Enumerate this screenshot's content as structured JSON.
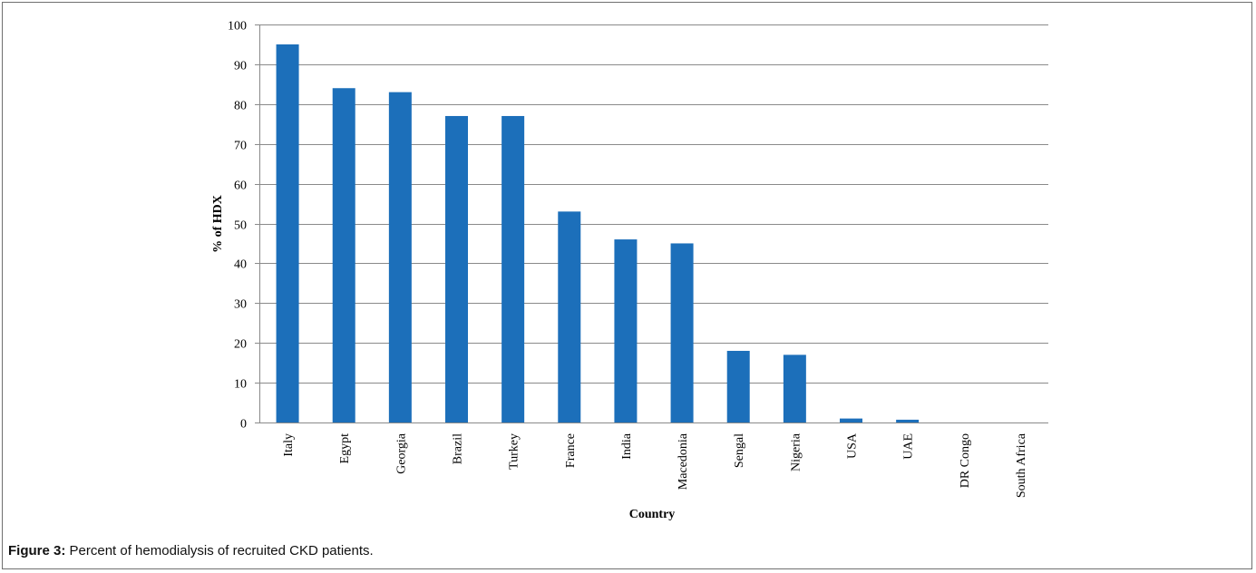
{
  "chart_data": {
    "type": "bar",
    "xlabel": "Country",
    "ylabel": "% of HDX",
    "ylim": [
      0,
      100
    ],
    "yticks": [
      0,
      10,
      20,
      30,
      40,
      50,
      60,
      70,
      80,
      90,
      100
    ],
    "grid": true,
    "categories": [
      "Italy",
      "Egypt",
      "Georgia",
      "Brazil",
      "Turkey",
      "France",
      "India",
      "Macedonia",
      "Sengal",
      "Nigeria",
      "USA",
      "UAE",
      "DR Congo",
      "South Africa"
    ],
    "values": [
      95,
      84,
      83,
      77,
      77,
      53,
      46,
      45,
      18,
      17,
      1,
      0.7,
      0,
      0
    ],
    "bar_color": "#1c6fba",
    "grid_color": "#8a8a8a"
  },
  "caption": {
    "label": "Figure 3:",
    "text": " Percent of hemodialysis of recruited CKD patients."
  }
}
